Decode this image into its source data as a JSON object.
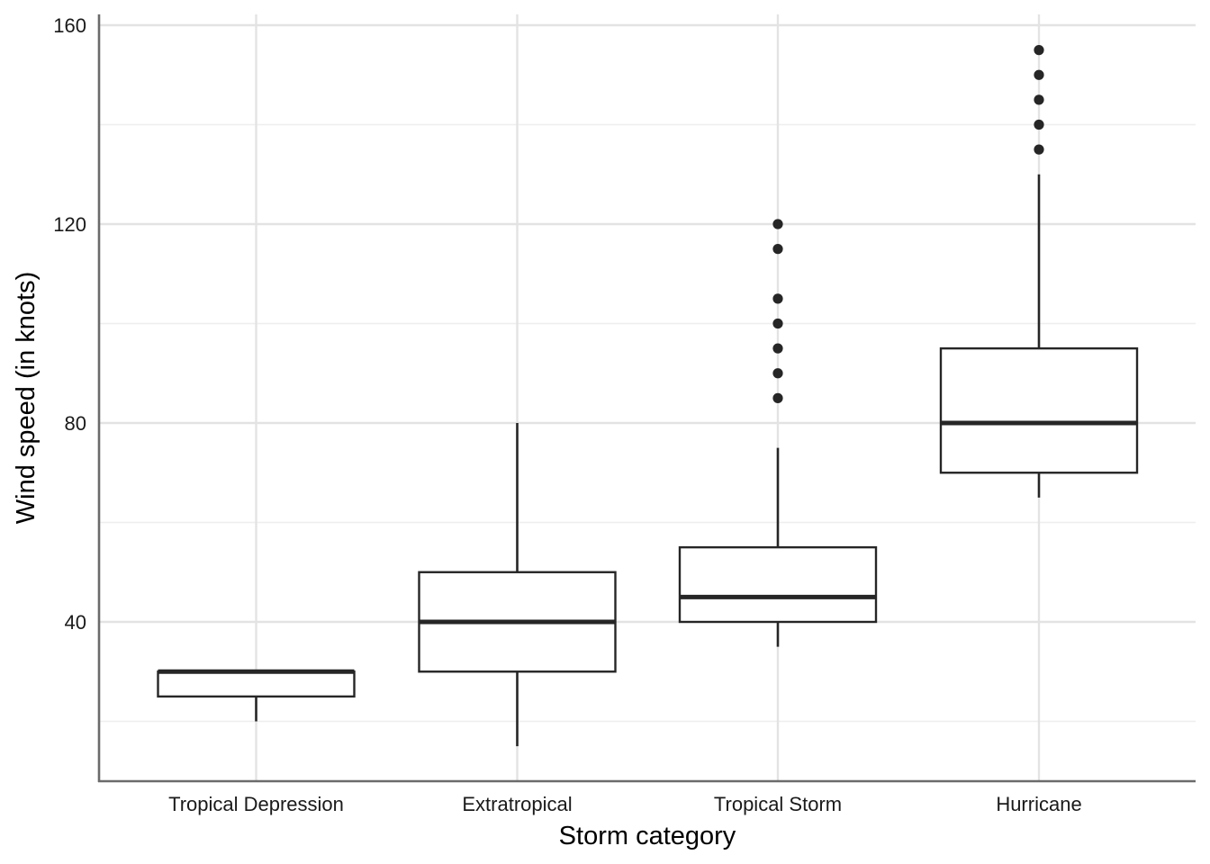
{
  "chart_data": {
    "type": "box",
    "xlabel": "Storm category",
    "ylabel": "Wind speed (in knots)",
    "ylim": [
      8,
      162
    ],
    "y_ticks": [
      40,
      80,
      120,
      160
    ],
    "y_minor_ticks": [
      20,
      60,
      100,
      140
    ],
    "grid": true,
    "colors": {
      "box_stroke": "#262626",
      "grid": "#e3e3e3",
      "axis": "#6b6b6b"
    },
    "categories": [
      "Tropical Depression",
      "Extratropical",
      "Tropical Storm",
      "Hurricane"
    ],
    "boxes": [
      {
        "category": "Tropical Depression",
        "whisker_low": 20,
        "q1": 25,
        "median": 30,
        "q3": 30,
        "whisker_high": 30,
        "outliers": []
      },
      {
        "category": "Extratropical",
        "whisker_low": 15,
        "q1": 30,
        "median": 40,
        "q3": 50,
        "whisker_high": 80,
        "outliers": []
      },
      {
        "category": "Tropical Storm",
        "whisker_low": 35,
        "q1": 40,
        "median": 45,
        "q3": 55,
        "whisker_high": 75,
        "outliers": [
          85,
          90,
          95,
          100,
          105,
          115,
          120
        ]
      },
      {
        "category": "Hurricane",
        "whisker_low": 65,
        "q1": 70,
        "median": 80,
        "q3": 95,
        "whisker_high": 130,
        "outliers": [
          135,
          140,
          145,
          150,
          155
        ]
      }
    ]
  }
}
